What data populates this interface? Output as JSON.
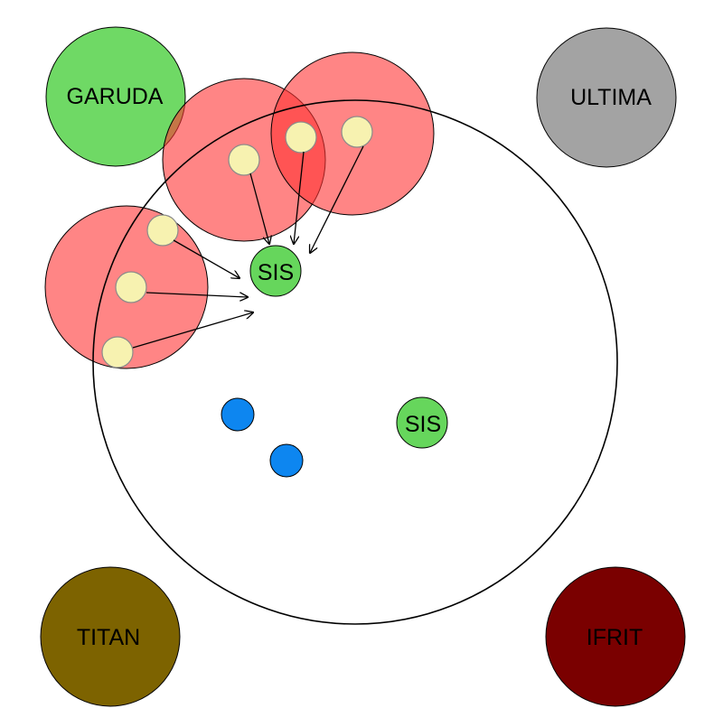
{
  "colors": {
    "background": "#ffffff",
    "arena_stroke": "#000000",
    "aoe_fill": "#ff3333",
    "player_fill": "#f7f2b0",
    "player_stroke": "#8a8a8a",
    "sis_fill": "#66d65c",
    "blue_marker": "#0d86f0",
    "garuda": "#6fd965",
    "ultima": "#a3a3a3",
    "titan": "#7d6300",
    "ifrit": "#7a0000"
  },
  "bosses": {
    "garuda": {
      "label": "GARUDA"
    },
    "ultima": {
      "label": "ULTIMA"
    },
    "titan": {
      "label": "TITAN"
    },
    "ifrit": {
      "label": "IFRIT"
    }
  },
  "sis_markers": [
    {
      "label": "SIS"
    },
    {
      "label": "SIS"
    }
  ]
}
